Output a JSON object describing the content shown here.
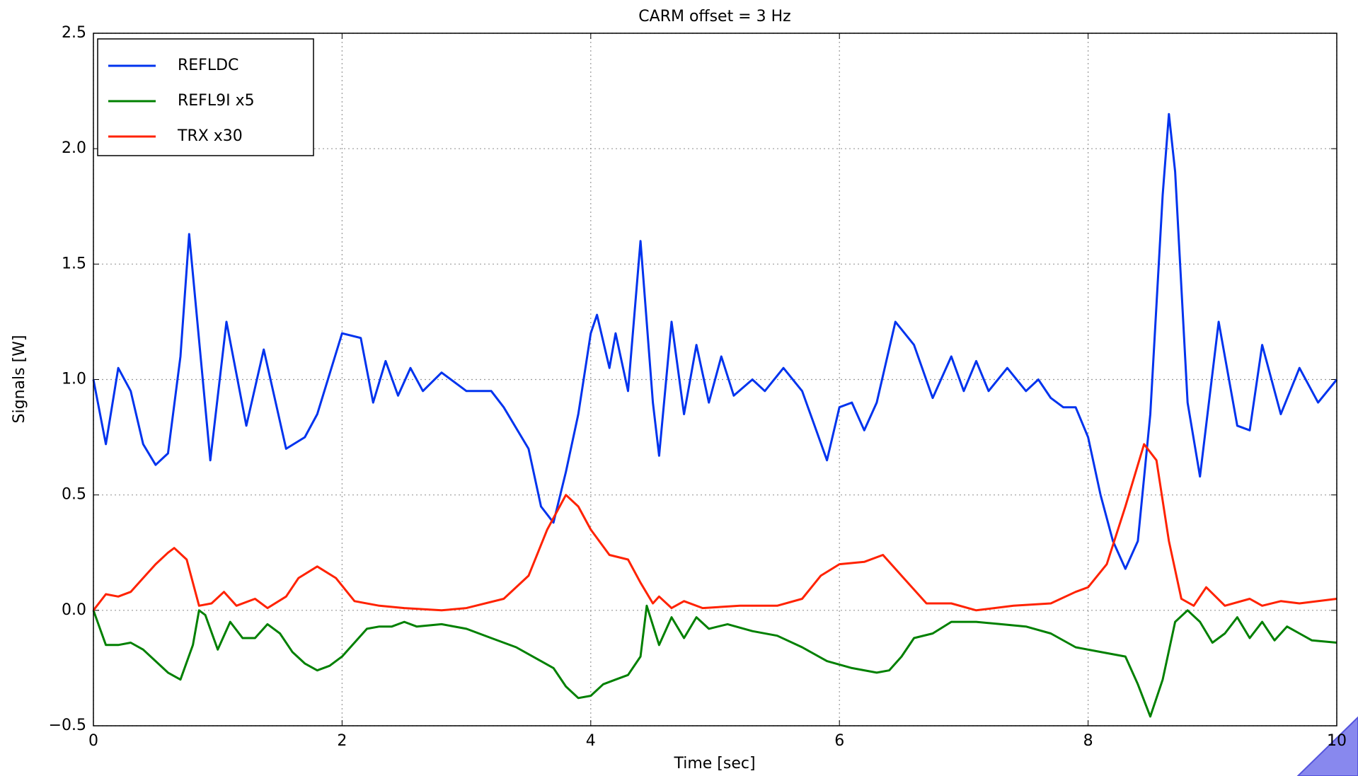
{
  "chart_data": {
    "type": "line",
    "title": "CARM offset = 3 Hz",
    "xlabel": "Time [sec]",
    "ylabel": "Signals [W]",
    "xlim": [
      0,
      10
    ],
    "ylim": [
      -0.5,
      2.5
    ],
    "xticks": [
      0,
      2,
      4,
      6,
      8,
      10
    ],
    "yticks": [
      {
        "value": -0.5,
        "label": "−0.5"
      },
      {
        "value": 0,
        "label": "0.0"
      },
      0.5,
      {
        "value": 1,
        "label": "1.0"
      },
      1.5,
      {
        "value": 2,
        "label": "2.0"
      },
      2.5
    ],
    "grid": true,
    "legend": "upper left",
    "series": [
      {
        "name": "REFLDC",
        "color": "#0033ee",
        "x": [
          0,
          0.1,
          0.2,
          0.3,
          0.4,
          0.5,
          0.6,
          0.7,
          0.77,
          0.94,
          1.07,
          1.23,
          1.37,
          1.55,
          1.7,
          1.8,
          2.0,
          2.15,
          2.25,
          2.35,
          2.45,
          2.55,
          2.65,
          2.8,
          3.0,
          3.2,
          3.3,
          3.5,
          3.6,
          3.7,
          3.8,
          3.9,
          4.0,
          4.05,
          4.15,
          4.2,
          4.3,
          4.4,
          4.5,
          4.55,
          4.65,
          4.75,
          4.85,
          4.95,
          5.05,
          5.15,
          5.3,
          5.4,
          5.55,
          5.7,
          5.8,
          5.9,
          6.0,
          6.1,
          6.2,
          6.3,
          6.45,
          6.6,
          6.75,
          6.9,
          7.0,
          7.1,
          7.2,
          7.35,
          7.5,
          7.6,
          7.7,
          7.8,
          7.9,
          8.0,
          8.1,
          8.2,
          8.3,
          8.4,
          8.5,
          8.6,
          8.65,
          8.7,
          8.8,
          8.9,
          9.05,
          9.2,
          9.3,
          9.4,
          9.55,
          9.7,
          9.85,
          10
        ],
        "values": [
          1.0,
          0.72,
          1.05,
          0.95,
          0.72,
          0.63,
          0.68,
          1.1,
          1.63,
          0.65,
          1.25,
          0.8,
          1.13,
          0.7,
          0.75,
          0.85,
          1.2,
          1.18,
          0.9,
          1.08,
          0.93,
          1.05,
          0.95,
          1.03,
          0.95,
          0.95,
          0.88,
          0.7,
          0.45,
          0.38,
          0.6,
          0.85,
          1.2,
          1.28,
          1.05,
          1.2,
          0.95,
          1.6,
          0.9,
          0.67,
          1.25,
          0.85,
          1.15,
          0.9,
          1.1,
          0.93,
          1.0,
          0.95,
          1.05,
          0.95,
          0.8,
          0.65,
          0.88,
          0.9,
          0.78,
          0.9,
          1.25,
          1.15,
          0.92,
          1.1,
          0.95,
          1.08,
          0.95,
          1.05,
          0.95,
          1.0,
          0.92,
          0.88,
          0.88,
          0.75,
          0.5,
          0.3,
          0.18,
          0.3,
          0.85,
          1.8,
          2.15,
          1.9,
          0.9,
          0.58,
          1.25,
          0.8,
          0.78,
          1.15,
          0.85,
          1.05,
          0.9,
          1.0
        ]
      },
      {
        "name": "REFL9I x5",
        "color": "#008000",
        "x": [
          0,
          0.1,
          0.2,
          0.3,
          0.4,
          0.5,
          0.6,
          0.7,
          0.8,
          0.85,
          0.9,
          1.0,
          1.1,
          1.2,
          1.3,
          1.4,
          1.5,
          1.6,
          1.7,
          1.8,
          1.9,
          2.0,
          2.2,
          2.3,
          2.4,
          2.5,
          2.6,
          2.8,
          3.0,
          3.2,
          3.4,
          3.6,
          3.7,
          3.8,
          3.9,
          4.0,
          4.1,
          4.2,
          4.3,
          4.4,
          4.45,
          4.55,
          4.65,
          4.75,
          4.85,
          4.95,
          5.1,
          5.3,
          5.5,
          5.7,
          5.9,
          6.1,
          6.3,
          6.4,
          6.5,
          6.6,
          6.75,
          6.9,
          7.1,
          7.3,
          7.5,
          7.7,
          7.9,
          8.1,
          8.3,
          8.4,
          8.5,
          8.6,
          8.7,
          8.8,
          8.9,
          9.0,
          9.1,
          9.2,
          9.3,
          9.4,
          9.5,
          9.6,
          9.7,
          9.8,
          10
        ],
        "values": [
          0,
          -0.15,
          -0.15,
          -0.14,
          -0.17,
          -0.22,
          -0.27,
          -0.3,
          -0.15,
          0,
          -0.02,
          -0.17,
          -0.05,
          -0.12,
          -0.12,
          -0.06,
          -0.1,
          -0.18,
          -0.23,
          -0.26,
          -0.24,
          -0.2,
          -0.08,
          -0.07,
          -0.07,
          -0.05,
          -0.07,
          -0.06,
          -0.08,
          -0.12,
          -0.16,
          -0.22,
          -0.25,
          -0.33,
          -0.38,
          -0.37,
          -0.32,
          -0.3,
          -0.28,
          -0.2,
          0.02,
          -0.15,
          -0.03,
          -0.12,
          -0.03,
          -0.08,
          -0.06,
          -0.09,
          -0.11,
          -0.16,
          -0.22,
          -0.25,
          -0.27,
          -0.26,
          -0.2,
          -0.12,
          -0.1,
          -0.05,
          -0.05,
          -0.06,
          -0.07,
          -0.1,
          -0.16,
          -0.18,
          -0.2,
          -0.32,
          -0.46,
          -0.3,
          -0.05,
          0,
          -0.05,
          -0.14,
          -0.1,
          -0.03,
          -0.12,
          -0.05,
          -0.13,
          -0.07,
          -0.1,
          -0.13,
          -0.14
        ]
      },
      {
        "name": "TRX x30",
        "color": "#ff2200",
        "x": [
          0,
          0.1,
          0.2,
          0.3,
          0.4,
          0.5,
          0.6,
          0.65,
          0.75,
          0.85,
          0.95,
          1.05,
          1.15,
          1.3,
          1.4,
          1.55,
          1.65,
          1.8,
          1.95,
          2.1,
          2.3,
          2.5,
          2.8,
          3.0,
          3.3,
          3.5,
          3.65,
          3.8,
          3.9,
          4.0,
          4.15,
          4.3,
          4.4,
          4.5,
          4.55,
          4.65,
          4.75,
          4.9,
          5.2,
          5.5,
          5.7,
          5.85,
          6.0,
          6.2,
          6.35,
          6.5,
          6.7,
          6.9,
          7.1,
          7.4,
          7.7,
          7.9,
          8.0,
          8.15,
          8.3,
          8.45,
          8.55,
          8.65,
          8.75,
          8.85,
          8.95,
          9.1,
          9.3,
          9.4,
          9.55,
          9.7,
          9.85,
          10
        ],
        "values": [
          0,
          0.07,
          0.06,
          0.08,
          0.14,
          0.2,
          0.25,
          0.27,
          0.22,
          0.02,
          0.03,
          0.08,
          0.02,
          0.05,
          0.01,
          0.06,
          0.14,
          0.19,
          0.14,
          0.04,
          0.02,
          0.01,
          0,
          0.01,
          0.05,
          0.15,
          0.35,
          0.5,
          0.45,
          0.35,
          0.24,
          0.22,
          0.12,
          0.03,
          0.06,
          0.01,
          0.04,
          0.01,
          0.02,
          0.02,
          0.05,
          0.15,
          0.2,
          0.21,
          0.24,
          0.15,
          0.03,
          0.03,
          0,
          0.02,
          0.03,
          0.08,
          0.1,
          0.2,
          0.45,
          0.72,
          0.65,
          0.3,
          0.05,
          0.02,
          0.1,
          0.02,
          0.05,
          0.02,
          0.04,
          0.03,
          0.04,
          0.05
        ]
      }
    ]
  }
}
